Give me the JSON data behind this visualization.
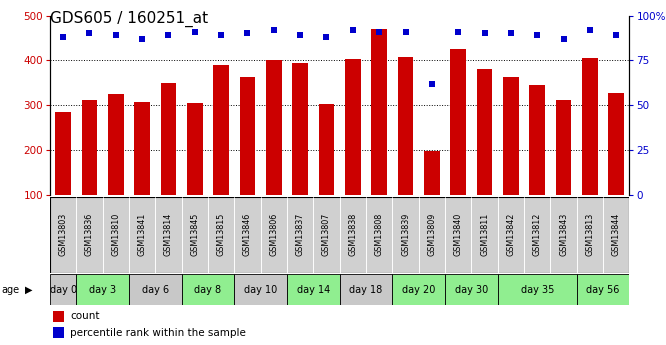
{
  "title": "GDS605 / 160251_at",
  "gsm_labels": [
    "GSM13803",
    "GSM13836",
    "GSM13810",
    "GSM13841",
    "GSM13814",
    "GSM13845",
    "GSM13815",
    "GSM13846",
    "GSM13806",
    "GSM13837",
    "GSM13807",
    "GSM13838",
    "GSM13808",
    "GSM13839",
    "GSM13809",
    "GSM13840",
    "GSM13811",
    "GSM13842",
    "GSM13812",
    "GSM13843",
    "GSM13813",
    "GSM13844"
  ],
  "bar_values": [
    285,
    312,
    325,
    307,
    349,
    304,
    389,
    364,
    400,
    395,
    302,
    404,
    469,
    408,
    197,
    425,
    380,
    363,
    346,
    311,
    406,
    328
  ],
  "dot_values": [
    88,
    90,
    89,
    87,
    89,
    91,
    89,
    90,
    92,
    89,
    88,
    92,
    91,
    91,
    62,
    91,
    90,
    90,
    89,
    87,
    92,
    89
  ],
  "age_groups": [
    {
      "label": "day 0",
      "start": 0,
      "end": 1,
      "color": "#c8c8c8"
    },
    {
      "label": "day 3",
      "start": 1,
      "end": 3,
      "color": "#90ee90"
    },
    {
      "label": "day 6",
      "start": 3,
      "end": 5,
      "color": "#c8c8c8"
    },
    {
      "label": "day 8",
      "start": 5,
      "end": 7,
      "color": "#90ee90"
    },
    {
      "label": "day 10",
      "start": 7,
      "end": 9,
      "color": "#c8c8c8"
    },
    {
      "label": "day 14",
      "start": 9,
      "end": 11,
      "color": "#90ee90"
    },
    {
      "label": "day 18",
      "start": 11,
      "end": 13,
      "color": "#c8c8c8"
    },
    {
      "label": "day 20",
      "start": 13,
      "end": 15,
      "color": "#90ee90"
    },
    {
      "label": "day 30",
      "start": 15,
      "end": 17,
      "color": "#90ee90"
    },
    {
      "label": "day 35",
      "start": 17,
      "end": 20,
      "color": "#90ee90"
    },
    {
      "label": "day 56",
      "start": 20,
      "end": 22,
      "color": "#90ee90"
    }
  ],
  "gsm_bg_color": "#d0d0d0",
  "ylim_left": [
    100,
    500
  ],
  "ylim_right": [
    0,
    100
  ],
  "bar_color": "#cc0000",
  "dot_color": "#0000cc",
  "title_fontsize": 11,
  "axis_label_color_left": "#cc0000",
  "axis_label_color_right": "#0000cc",
  "yticks_left": [
    100,
    200,
    300,
    400,
    500
  ],
  "yticks_right": [
    0,
    25,
    50,
    75,
    100
  ],
  "ytick_labels_right": [
    "0",
    "25",
    "50",
    "75",
    "100%"
  ],
  "grid_lines": [
    200,
    300,
    400
  ]
}
